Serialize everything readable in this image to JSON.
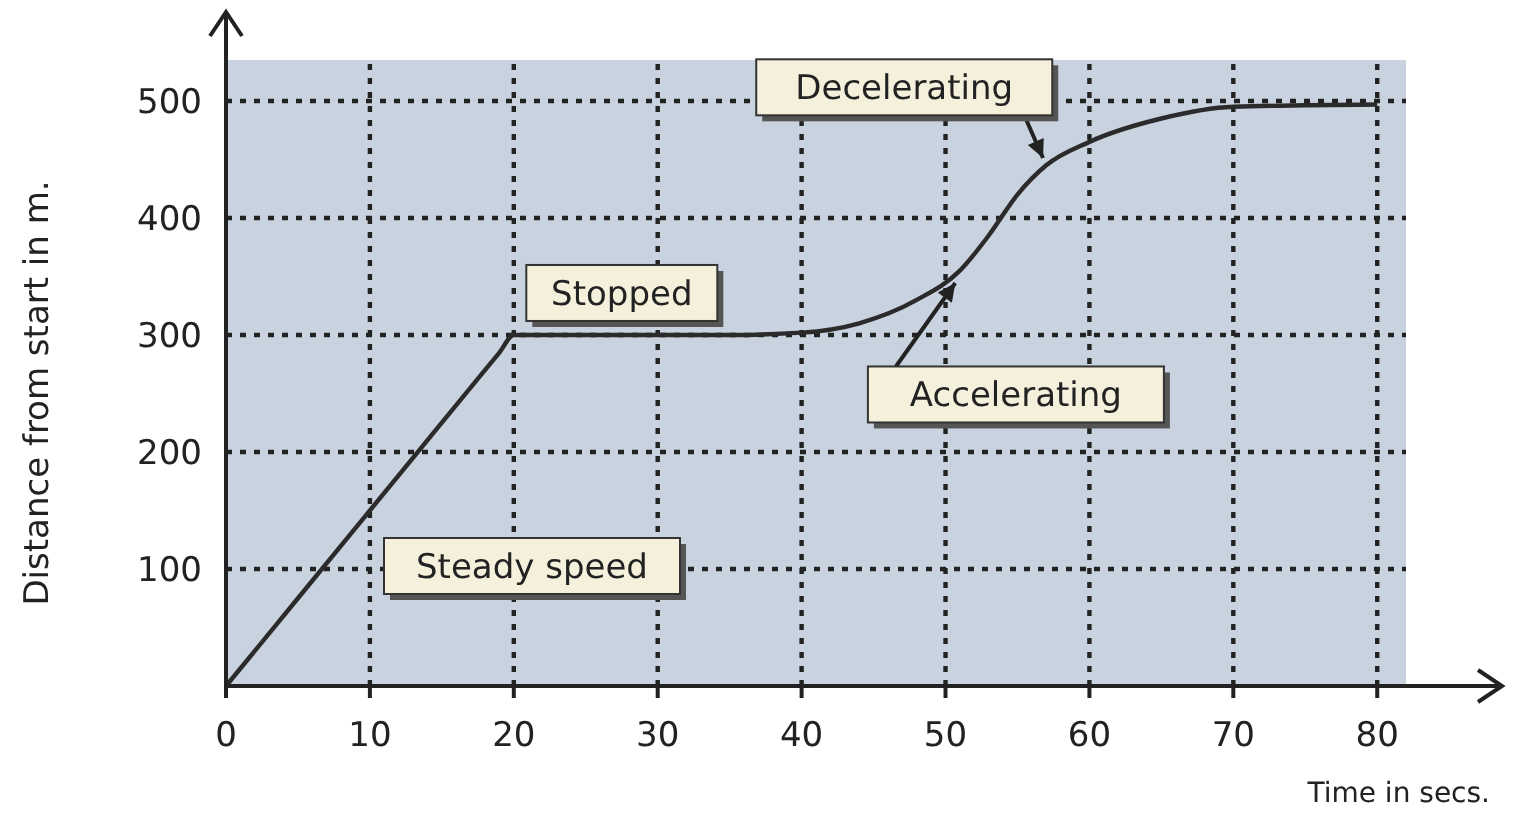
{
  "chart_data": {
    "type": "line",
    "xlabel": "Time in secs.",
    "ylabel": "Distance from start in m.",
    "xlim": [
      0,
      82
    ],
    "ylim": [
      0,
      535
    ],
    "xticks": [
      0,
      10,
      20,
      30,
      40,
      50,
      60,
      70,
      80
    ],
    "yticks": [
      {
        "value": 0,
        "label": null
      },
      100,
      200,
      300,
      400,
      500
    ],
    "grid": true,
    "line_style": "solid",
    "marker": "none",
    "series": [
      {
        "color": "#2b2b2b",
        "x": [
          0,
          5,
          10,
          15,
          19,
          20,
          21,
          25,
          35,
          40,
          44,
          48,
          51,
          53,
          55,
          57,
          60,
          65,
          70,
          80
        ],
        "values": [
          0,
          75,
          150,
          225,
          285,
          300,
          300,
          300,
          300,
          302,
          310,
          330,
          355,
          385,
          420,
          445,
          465,
          485,
          495,
          497
        ]
      }
    ],
    "annotations": [
      "Steady speed",
      {
        "text": "Stopped",
        "x": 20,
        "y": 300
      },
      {
        "text": "Accelerating",
        "x": 51,
        "y": 350
      },
      {
        "text": "Decelerating",
        "x": 57,
        "y": 445
      }
    ]
  }
}
